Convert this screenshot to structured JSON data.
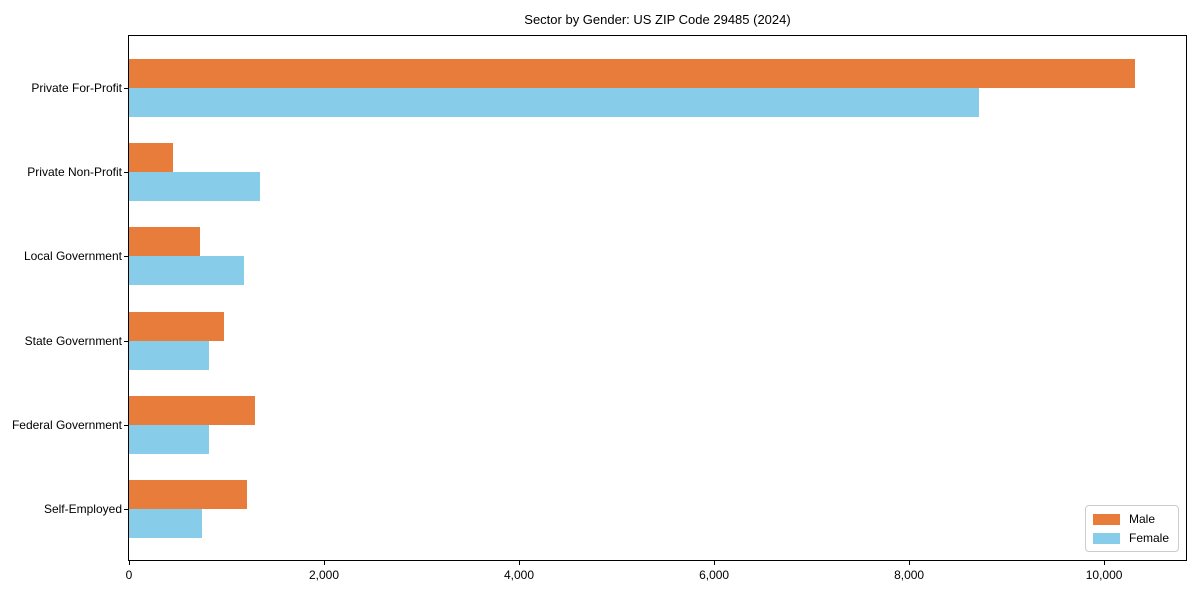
{
  "title": "Sector by Gender: US ZIP Code 29485 (2024)",
  "chart_data": {
    "type": "bar",
    "orientation": "horizontal",
    "title": "Sector by Gender: US ZIP Code 29485 (2024)",
    "categories": [
      "Private For-Profit",
      "Private Non-Profit",
      "Local Government",
      "State Government",
      "Federal Government",
      "Self-Employed"
    ],
    "series": [
      {
        "name": "Male",
        "color": "#E87D3B",
        "values": [
          10320,
          450,
          730,
          970,
          1290,
          1210
        ]
      },
      {
        "name": "Female",
        "color": "#87CDE9",
        "values": [
          8720,
          1340,
          1180,
          820,
          820,
          750
        ]
      }
    ],
    "xlabel": "",
    "ylabel": "",
    "xlim": [
      0,
      10840
    ],
    "x_ticks": [
      0,
      2000,
      4000,
      6000,
      8000,
      10000
    ],
    "x_tick_labels": [
      "0",
      "2,000",
      "4,000",
      "6,000",
      "8,000",
      "10,000"
    ],
    "grid": false,
    "legend": {
      "position": "lower right",
      "entries": [
        "Male",
        "Female"
      ]
    }
  }
}
